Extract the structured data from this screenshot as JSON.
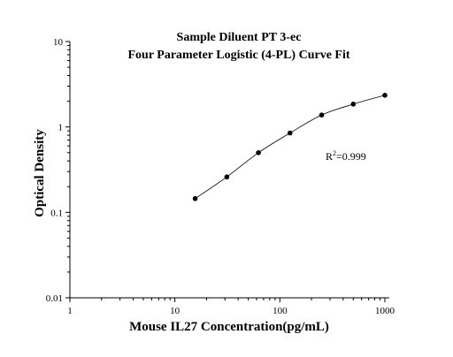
{
  "chart_data": {
    "type": "scatter",
    "title": "Sample Diluent PT 3-ec",
    "subtitle": "Four Parameter Logistic (4-PL) Curve Fit",
    "xlabel": "Mouse IL27 Concentration(pg/mL)",
    "ylabel": "Optical Density",
    "x_scale": "log",
    "y_scale": "log",
    "xlim": [
      1,
      1000
    ],
    "ylim": [
      0.01,
      10
    ],
    "x_ticks": [
      "1",
      "10",
      "100",
      "1000"
    ],
    "y_ticks": [
      "0.01",
      "0.1",
      "1",
      "10"
    ],
    "grid": false,
    "series": [
      {
        "x": [
          15.6,
          31.25,
          62.5,
          125,
          250,
          500,
          1000
        ],
        "y": [
          0.145,
          0.26,
          0.5,
          0.85,
          1.38,
          1.85,
          2.35
        ]
      }
    ],
    "fit_curve": "4-PL",
    "annotation": {
      "prefix": "R",
      "superscript": "2",
      "suffix": "=0.999"
    }
  }
}
